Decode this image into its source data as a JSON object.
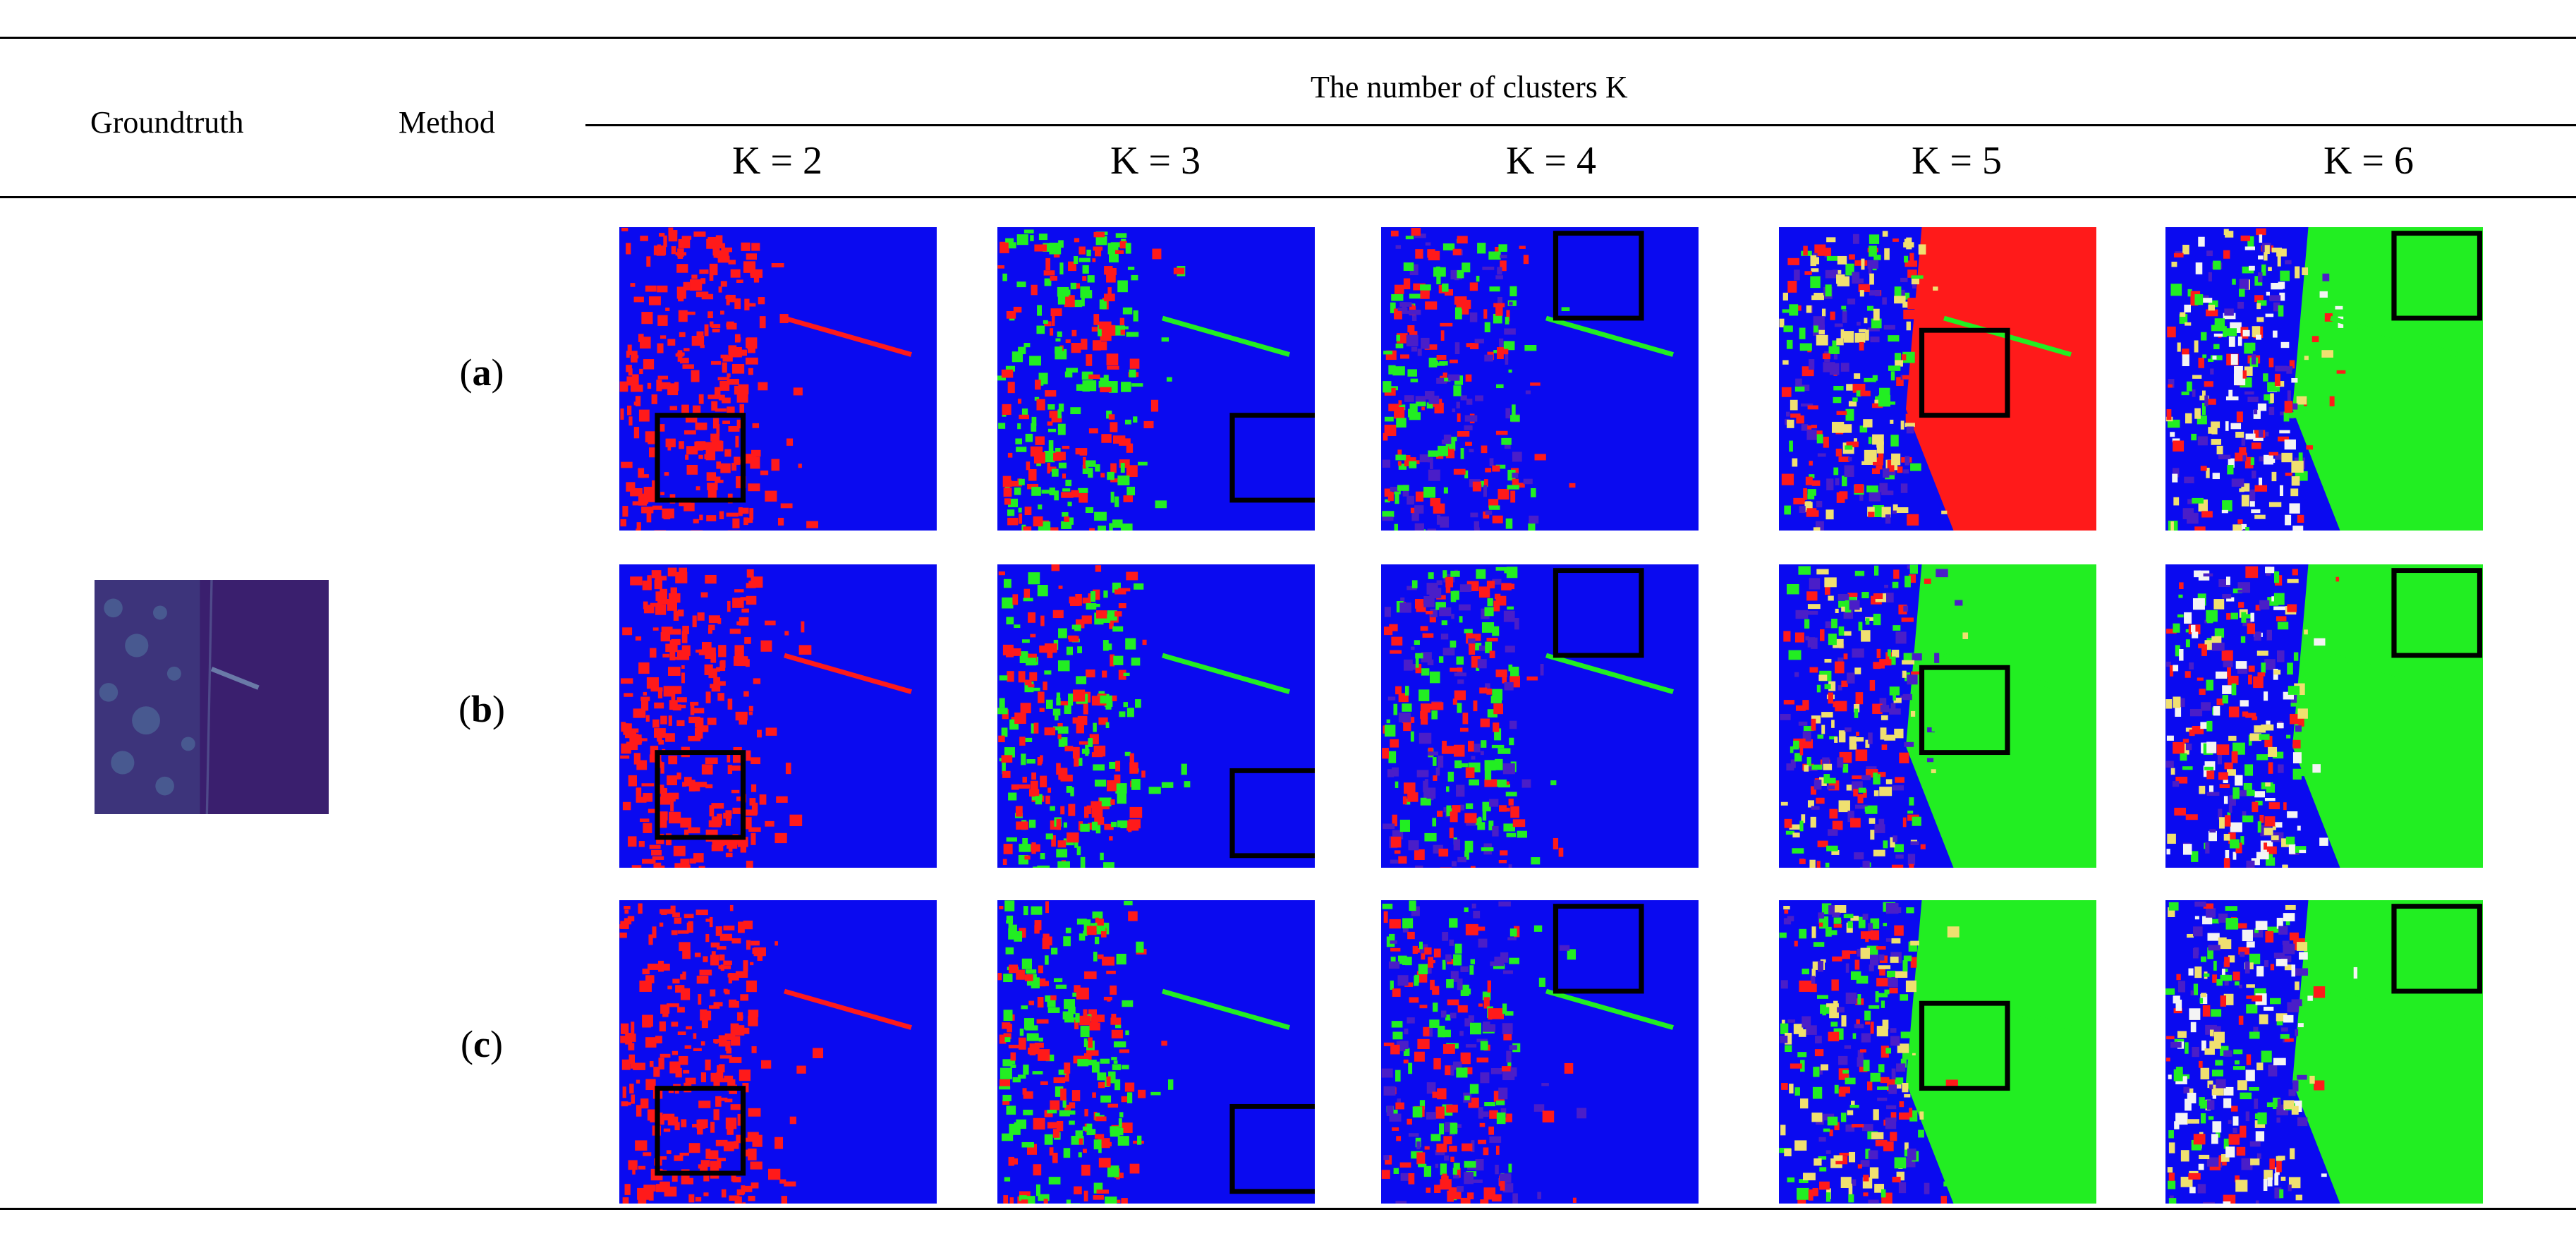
{
  "header": {
    "groundtruth": "Groundtruth",
    "method": "Method",
    "clusters_title": "The number of clusters K",
    "k_labels": [
      "K = 2",
      "K = 3",
      "K = 4",
      "K = 5",
      "K = 6"
    ]
  },
  "rows": [
    {
      "open": "(",
      "letter": "a",
      "close": ")"
    },
    {
      "open": "(",
      "letter": "b",
      "close": ")"
    },
    {
      "open": "(",
      "letter": "c",
      "close": ")"
    }
  ],
  "colors": {
    "red": "#ff1a1a",
    "blue": "#0a0af0",
    "green": "#22ee22",
    "purple": "#4a1ec8",
    "yellow": "#f0e070",
    "white": "#f4f4f4",
    "groundtruth_bg": "#3a1f6e"
  }
}
